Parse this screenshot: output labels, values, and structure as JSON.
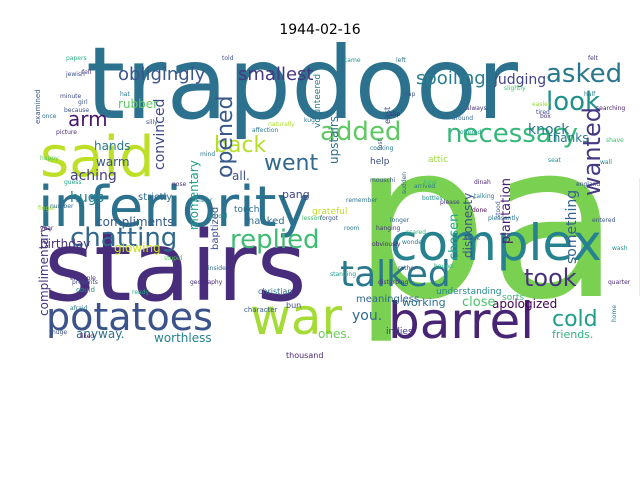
{
  "title": "1944-02-16",
  "cloud": {
    "palette": "viridis",
    "words": [
      {
        "text": "pan",
        "color": "#7ad151"
      },
      {
        "text": "trapdoor",
        "color": "#2c728e"
      },
      {
        "text": "stairs",
        "color": "#472d7b"
      },
      {
        "text": "inferiority",
        "color": "#2c728e"
      },
      {
        "text": "said",
        "color": "#bddf26"
      },
      {
        "text": "complex",
        "color": "#26828e"
      },
      {
        "text": "barrel",
        "color": "#482475"
      },
      {
        "text": "war",
        "color": "#a5db36"
      },
      {
        "text": "talked",
        "color": "#2a788e"
      },
      {
        "text": "potatoes",
        "color": "#3b528b"
      },
      {
        "text": "chatting",
        "color": "#31688e"
      },
      {
        "text": "replied",
        "color": "#3fbc73"
      },
      {
        "text": "asked",
        "color": "#2a788e"
      },
      {
        "text": "look",
        "color": "#21918c"
      },
      {
        "text": "added",
        "color": "#5ec962"
      },
      {
        "text": "necessary",
        "color": "#35b779"
      },
      {
        "text": "back",
        "color": "#b5de2b"
      },
      {
        "text": "went",
        "color": "#31688e"
      },
      {
        "text": "took",
        "color": "#46337e"
      },
      {
        "text": "wanted",
        "color": "#443983"
      },
      {
        "text": "cold",
        "color": "#1f9e89"
      },
      {
        "text": "opened",
        "color": "#38598c"
      },
      {
        "text": "obligingly",
        "color": "#39558c"
      },
      {
        "text": "smallest",
        "color": "#453781"
      },
      {
        "text": "spoiling",
        "color": "#287d8e"
      },
      {
        "text": "judging",
        "color": "#414487"
      },
      {
        "text": "aching",
        "color": "#433e85"
      },
      {
        "text": "arm",
        "color": "#48186a"
      },
      {
        "text": "convinced",
        "color": "#3e4989"
      },
      {
        "text": "knock",
        "color": "#2a788e"
      },
      {
        "text": "something",
        "color": "#34618d"
      },
      {
        "text": "plantation",
        "color": "#481f70"
      },
      {
        "text": "dishonesty",
        "color": "#3b528b"
      },
      {
        "text": "apologized",
        "color": "#440154"
      },
      {
        "text": "upstairs",
        "color": "#2d708e"
      },
      {
        "text": "momentary",
        "color": "#1f9e89"
      },
      {
        "text": "hugs",
        "color": "#26828e"
      },
      {
        "text": "all.",
        "color": "#3b528b"
      },
      {
        "text": "compliments",
        "color": "#375a8c"
      },
      {
        "text": "glowing",
        "color": "#cae11f"
      },
      {
        "text": "birthday",
        "color": "#46327e"
      },
      {
        "text": "complimentary",
        "color": "#46337e"
      },
      {
        "text": "worthless",
        "color": "#25838e"
      },
      {
        "text": "anyway.",
        "color": "#2d718e"
      },
      {
        "text": "you.",
        "color": "#31688e"
      },
      {
        "text": "ones.",
        "color": "#6ccd5a"
      },
      {
        "text": "close",
        "color": "#4ec36b"
      },
      {
        "text": "chosen",
        "color": "#22a884"
      },
      {
        "text": "working",
        "color": "#2b748e"
      },
      {
        "text": "friends.",
        "color": "#2fb47c"
      },
      {
        "text": "rubber",
        "color": "#5ec962"
      },
      {
        "text": "hands",
        "color": "#2a788e"
      },
      {
        "text": "warm",
        "color": "#3b528b"
      },
      {
        "text": "strictly",
        "color": "#2f6c8e"
      },
      {
        "text": "pang",
        "color": "#404688"
      },
      {
        "text": "thanked",
        "color": "#2d708e"
      },
      {
        "text": "touch",
        "color": "#2e6f8e"
      },
      {
        "text": "thanks",
        "color": "#2a788e"
      },
      {
        "text": "sorts",
        "color": "#3aba76"
      },
      {
        "text": "meaningless",
        "color": "#31668e"
      },
      {
        "text": "baptized",
        "color": "#3b528b"
      },
      {
        "text": "volunteered",
        "color": "#2a788e"
      },
      {
        "text": "understanding",
        "color": "#23898e"
      },
      {
        "text": "indies",
        "color": "#443983"
      },
      {
        "text": "thousand",
        "color": "#482979"
      },
      {
        "text": "attic",
        "color": "#9bd93c"
      },
      {
        "text": "help",
        "color": "#3d4e8a"
      },
      {
        "text": "east",
        "color": "#3e4a89"
      },
      {
        "text": "grateful",
        "color": "#bddf26"
      },
      {
        "text": "bun",
        "color": "#3f4788"
      },
      {
        "text": "christian",
        "color": "#2c738e"
      },
      {
        "text": "character",
        "color": "#34608d"
      },
      {
        "text": "naturally",
        "color": "#addc30"
      },
      {
        "text": "affection",
        "color": "#287c8e"
      },
      {
        "text": "examined",
        "color": "#375b8d"
      },
      {
        "text": "papers",
        "color": "#2ab07f"
      },
      {
        "text": "jewish",
        "color": "#3b528b"
      },
      {
        "text": "example",
        "color": "#46327e"
      },
      {
        "text": "presents",
        "color": "#3e4989"
      },
      {
        "text": "could",
        "color": "#21918c"
      },
      {
        "text": "afraid",
        "color": "#2a788e"
      },
      {
        "text": "huge",
        "color": "#3b528b"
      },
      {
        "text": "liked",
        "color": "#481a6c"
      },
      {
        "text": "ready",
        "color": "#22a785"
      },
      {
        "text": "inside",
        "color": "#2e6e8e"
      },
      {
        "text": "geography",
        "color": "#482878"
      },
      {
        "text": "stupid",
        "color": "#5ec962"
      },
      {
        "text": "around",
        "color": "#31688e"
      },
      {
        "text": "offered",
        "color": "#1fa088"
      },
      {
        "text": "always",
        "color": "#46327e"
      },
      {
        "text": "rather",
        "color": "#3b528b"
      },
      {
        "text": "bound",
        "color": "#29af7f"
      },
      {
        "text": "dinah",
        "color": "#482475"
      },
      {
        "text": "talking",
        "color": "#26818e"
      },
      {
        "text": "done",
        "color": "#440154"
      },
      {
        "text": "pleasantly",
        "color": "#2c728e"
      },
      {
        "text": "stood",
        "color": "#38588c"
      },
      {
        "text": "scared",
        "color": "#35b779"
      },
      {
        "text": "wonder",
        "color": "#297a8e"
      },
      {
        "text": "england",
        "color": "#3b528b"
      },
      {
        "text": "wall",
        "color": "#25848e"
      },
      {
        "text": "shave",
        "color": "#3fbc73"
      },
      {
        "text": "searching",
        "color": "#482173"
      },
      {
        "text": "wash",
        "color": "#21908d"
      },
      {
        "text": "quarter",
        "color": "#472c7a"
      },
      {
        "text": "easier",
        "color": "#95d840"
      },
      {
        "text": "half",
        "color": "#287d8e"
      },
      {
        "text": "felt",
        "color": "#443983"
      },
      {
        "text": "home",
        "color": "#2a788e"
      },
      {
        "text": "entered",
        "color": "#3b528b"
      },
      {
        "text": "please",
        "color": "#46337e"
      },
      {
        "text": "black",
        "color": "#2f6b8e"
      },
      {
        "text": "bottles",
        "color": "#21918c"
      },
      {
        "text": "lost",
        "color": "#3b528b"
      },
      {
        "text": "sudden",
        "color": "#34618d"
      },
      {
        "text": "arrived",
        "color": "#2a788e"
      },
      {
        "text": "tired",
        "color": "#3e4a89"
      },
      {
        "text": "slightly",
        "color": "#44bf70"
      },
      {
        "text": "obviously",
        "color": "#482878"
      },
      {
        "text": "standing",
        "color": "#1fa088"
      },
      {
        "text": "disturbing",
        "color": "#472d7b"
      },
      {
        "text": "room",
        "color": "#2a788e"
      },
      {
        "text": "longer",
        "color": "#31688e"
      },
      {
        "text": "mouschi",
        "color": "#3b528b"
      },
      {
        "text": "hanging",
        "color": "#46327e"
      },
      {
        "text": "remember",
        "color": "#2d708e"
      },
      {
        "text": "forgot",
        "color": "#3b528b"
      },
      {
        "text": "lesson",
        "color": "#3fbc73"
      },
      {
        "text": "cooking",
        "color": "#2a788e"
      },
      {
        "text": "happy",
        "color": "#5ec962"
      },
      {
        "text": "picture",
        "color": "#472d7b"
      },
      {
        "text": "because",
        "color": "#3b528b"
      },
      {
        "text": "finger",
        "color": "#a0da39"
      },
      {
        "text": "number",
        "color": "#31688e"
      },
      {
        "text": "sister",
        "color": "#2a788e"
      },
      {
        "text": "school",
        "color": "#21918c"
      },
      {
        "text": "silly",
        "color": "#3b528b"
      },
      {
        "text": "nose",
        "color": "#46327e"
      },
      {
        "text": "mind",
        "color": "#2a788e"
      },
      {
        "text": "year",
        "color": "#482475"
      },
      {
        "text": "girl",
        "color": "#3b528b"
      },
      {
        "text": "once",
        "color": "#2d708e"
      },
      {
        "text": "guess",
        "color": "#20a386"
      },
      {
        "text": "minute",
        "color": "#3e4989"
      },
      {
        "text": "hat",
        "color": "#2a788e"
      },
      {
        "text": "fell",
        "color": "#46327e"
      },
      {
        "text": "told",
        "color": "#3b528b"
      },
      {
        "text": "came",
        "color": "#21918c"
      },
      {
        "text": "left",
        "color": "#2d708e"
      },
      {
        "text": "kind",
        "color": "#3fbc73"
      },
      {
        "text": "slip",
        "color": "#482475"
      },
      {
        "text": "nap",
        "color": "#3b528b"
      },
      {
        "text": "kug",
        "color": "#2a788e"
      },
      {
        "text": "box",
        "color": "#46327e"
      },
      {
        "text": "seat",
        "color": "#21918c"
      }
    ]
  }
}
